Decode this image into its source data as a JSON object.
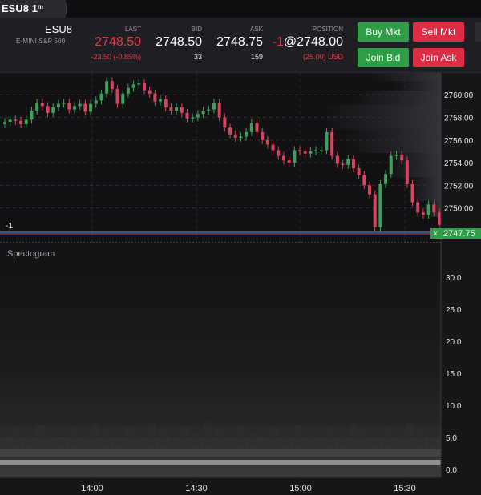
{
  "tab": {
    "title": "ESU8 1",
    "interval_sup": "m"
  },
  "instrument": {
    "symbol": "ESU8",
    "description": "E-MINI S&P 500"
  },
  "quote": {
    "last_label": "LAST",
    "last_value": "2748.50",
    "last_change": "-23.50 (-0.85%)",
    "bid_label": "BID",
    "bid_value": "2748.50",
    "bid_size": "33",
    "ask_label": "ASK",
    "ask_value": "2748.75",
    "ask_size": "159",
    "position_label": "POSITION",
    "position_qty": "-1",
    "position_at": "@2748.00",
    "position_pnl": "(25.00) USD"
  },
  "buttons": {
    "buy_mkt": "Buy Mkt",
    "sell_mkt": "Sell Mkt",
    "join_bid": "Join Bid",
    "join_ask": "Join Ask"
  },
  "colors": {
    "up": "#3fa05a",
    "down": "#d8435f",
    "accent_green": "#2f9d48",
    "accent_red": "#dd2d44",
    "position_line": "#4aa3ff"
  },
  "price_axis": {
    "ticks": [
      "2760.00",
      "2758.00",
      "2756.00",
      "2754.00",
      "2752.00",
      "2750.00"
    ],
    "current_price": "2747.75",
    "close_marker": "×"
  },
  "position_marker": "-1",
  "spectrogram": {
    "title": "Spectogram",
    "ticks": [
      "30.0",
      "25.0",
      "20.0",
      "15.0",
      "10.0",
      "5.0",
      "0.0"
    ]
  },
  "time_axis": {
    "ticks": [
      "14:00",
      "14:30",
      "15:00",
      "15:30"
    ]
  },
  "chart_data": {
    "type": "candlestick",
    "ylim": [
      2747.5,
      2761.5
    ],
    "closes": [
      2757.6,
      2757.8,
      2757.7,
      2757.4,
      2757.8,
      2758.6,
      2759.3,
      2759.0,
      2758.4,
      2758.9,
      2759.2,
      2759.3,
      2758.7,
      2759.0,
      2759.2,
      2758.5,
      2759.2,
      2759.5,
      2760.1,
      2761.2,
      2760.5,
      2759.2,
      2760.1,
      2760.6,
      2760.9,
      2761.0,
      2760.4,
      2760.1,
      2759.4,
      2759.6,
      2758.9,
      2758.6,
      2758.9,
      2758.4,
      2757.9,
      2758.0,
      2758.3,
      2758.6,
      2758.7,
      2759.3,
      2758.0,
      2757.1,
      2756.5,
      2756.2,
      2756.3,
      2756.7,
      2757.5,
      2756.7,
      2756.0,
      2755.6,
      2755.1,
      2754.6,
      2754.2,
      2754.0,
      2755.1,
      2755.0,
      2754.8,
      2755.0,
      2755.1,
      2755.1,
      2756.7,
      2754.6,
      2753.9,
      2753.8,
      2754.3,
      2753.5,
      2752.9,
      2752.0,
      2751.2,
      2748.3,
      2752.1,
      2753.0,
      2754.6,
      2754.7,
      2754.2,
      2752.1,
      2750.5,
      2749.6,
      2749.4,
      2750.3,
      2749.6,
      2748.5
    ]
  }
}
